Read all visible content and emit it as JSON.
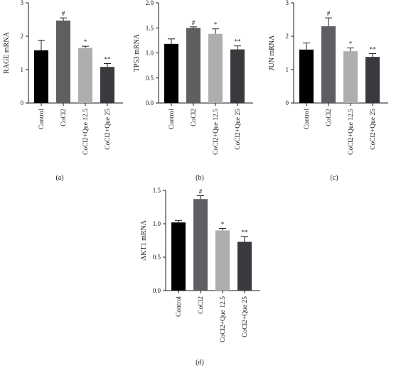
{
  "chart_data": [
    {
      "type": "bar",
      "panel_label": "(a)",
      "ylabel": "RAGE mRNA",
      "ylim": [
        0,
        3
      ],
      "yticks": [
        "0",
        "1",
        "2",
        "3"
      ],
      "categories": [
        "Control",
        "CoCl2",
        "CoCl2+Que 12.5",
        "CoCl2+Que 25"
      ],
      "values": [
        1.58,
        2.47,
        1.65,
        1.08
      ],
      "errors": [
        0.3,
        0.08,
        0.05,
        0.1
      ],
      "annotations": [
        "",
        "#",
        "*",
        "**"
      ]
    },
    {
      "type": "bar",
      "panel_label": "(b)",
      "ylabel": "TP53 mRNA",
      "ylim": [
        0,
        2.0
      ],
      "yticks": [
        "0.0",
        "0.5",
        "1.0",
        "1.5",
        "2.0"
      ],
      "categories": [
        "Control",
        "CoCl2",
        "CoCl2+Que 12.5",
        "CoCl2+Que 25"
      ],
      "values": [
        1.18,
        1.5,
        1.38,
        1.07
      ],
      "errors": [
        0.1,
        0.02,
        0.1,
        0.07
      ],
      "annotations": [
        "",
        "#",
        "*",
        "**"
      ]
    },
    {
      "type": "bar",
      "panel_label": "(c)",
      "ylabel": "JUN mRNA",
      "ylim": [
        0,
        3
      ],
      "yticks": [
        "0",
        "1",
        "2",
        "3"
      ],
      "categories": [
        "Control",
        "CoCl2",
        "CoCl2+Que 12.5",
        "CoCl2+Que 25"
      ],
      "values": [
        1.6,
        2.3,
        1.55,
        1.38
      ],
      "errors": [
        0.2,
        0.25,
        0.1,
        0.1
      ],
      "annotations": [
        "",
        "#",
        "*",
        "**"
      ]
    },
    {
      "type": "bar",
      "panel_label": "(d)",
      "ylabel": "AKT1 mRNA",
      "ylim": [
        0,
        1.5
      ],
      "yticks": [
        "0.0",
        "0.5",
        "1.0",
        "1.5"
      ],
      "categories": [
        "Control",
        "CoCl2",
        "CoCl2+Que 12.5",
        "CoCl2+Que 25"
      ],
      "values": [
        1.02,
        1.37,
        0.9,
        0.73
      ],
      "errors": [
        0.03,
        0.05,
        0.03,
        0.08
      ],
      "annotations": [
        "",
        "#",
        "*",
        "**"
      ]
    }
  ],
  "bar_colors": [
    "#000000",
    "#5f5f63",
    "#aeaeae",
    "#3a3a3e"
  ],
  "axis_color": "#1a1a1a"
}
